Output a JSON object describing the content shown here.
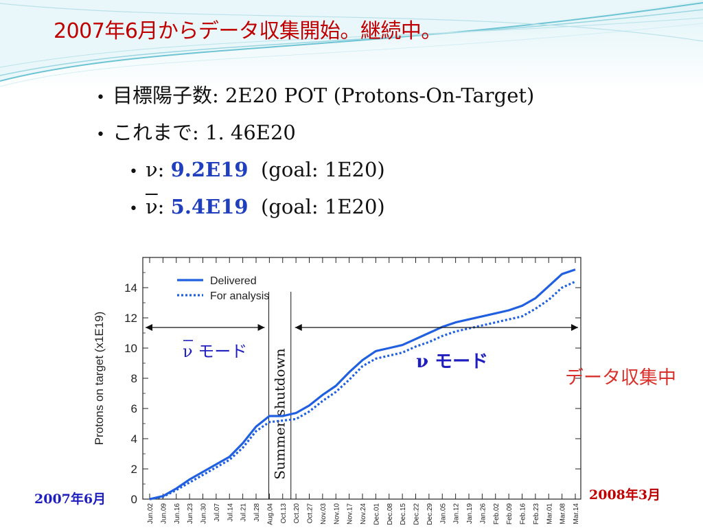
{
  "title": "2007年6月からデータ収集開始。継続中。",
  "bullets": {
    "goal": {
      "bullet": "•",
      "text": "目標陽子数: 2E20 POT (Protons-On-Target)"
    },
    "sofar": {
      "bullet": "•",
      "text": "これまで: 1. 46E20"
    },
    "nu": {
      "bullet": "•",
      "prefix": "ν: ",
      "value": "9.2E19",
      "goal": "  (goal: 1E20)"
    },
    "nubar": {
      "bullet": "•",
      "symbol": "ν",
      "colon": ": ",
      "value": "5.4E19",
      "goal": "  (goal: 1E20)"
    }
  },
  "annotations": {
    "nubar_mode": "ν モード",
    "nu_mode": "ν モード",
    "summer_shutdown": "Summer shutdown",
    "collecting": "データ収集中",
    "start_date": "2007年6月",
    "end_date": "2008年3月"
  },
  "colors": {
    "title": "#c00000",
    "accent_blue": "#1f3fbf",
    "series": "#1f5fe0",
    "collecting": "#d9302c",
    "teal_deco": "#4fb7c9"
  },
  "chart_data": {
    "type": "line",
    "ylabel": "Protons on target (x1E19)",
    "ylim": [
      0,
      16
    ],
    "yticks": [
      0,
      2,
      4,
      6,
      8,
      10,
      12,
      14
    ],
    "categories": [
      "Jun.02",
      "Jun.09",
      "Jun.16",
      "Jun.23",
      "Jun.30",
      "Jul.07",
      "Jul.14",
      "Jul.21",
      "Jul.28",
      "Aug.04",
      "Oct.13",
      "Oct.20",
      "Oct.27",
      "Nov.03",
      "Nov.10",
      "Nov.17",
      "Nov.24",
      "Dec.01",
      "Dec.08",
      "Dec.15",
      "Dec.22",
      "Dec.29",
      "Jan.05",
      "Jan.12",
      "Jan.19",
      "Jan.26",
      "Feb.02",
      "Feb.09",
      "Feb.16",
      "Feb.23",
      "Mar.01",
      "Mar.08",
      "Mar.14"
    ],
    "series": [
      {
        "name": "Delivered",
        "style": "solid",
        "values": [
          0.0,
          0.2,
          0.7,
          1.3,
          1.8,
          2.3,
          2.8,
          3.7,
          4.8,
          5.5,
          5.5,
          5.7,
          6.2,
          6.9,
          7.5,
          8.4,
          9.2,
          9.8,
          10.0,
          10.2,
          10.6,
          11.0,
          11.4,
          11.7,
          11.9,
          12.1,
          12.3,
          12.5,
          12.8,
          13.3,
          14.1,
          14.9,
          15.2
        ]
      },
      {
        "name": "For analysis",
        "style": "dotted",
        "values": [
          0.0,
          0.15,
          0.6,
          1.1,
          1.6,
          2.1,
          2.6,
          3.4,
          4.5,
          5.1,
          5.2,
          5.3,
          5.8,
          6.5,
          7.1,
          7.9,
          8.8,
          9.3,
          9.5,
          9.7,
          10.1,
          10.4,
          10.8,
          11.1,
          11.3,
          11.5,
          11.7,
          11.9,
          12.1,
          12.6,
          13.2,
          14.0,
          14.4
        ]
      }
    ],
    "shutdown_between": [
      "Aug.04",
      "Oct.13"
    ],
    "legend": "top-left",
    "grid": false
  }
}
